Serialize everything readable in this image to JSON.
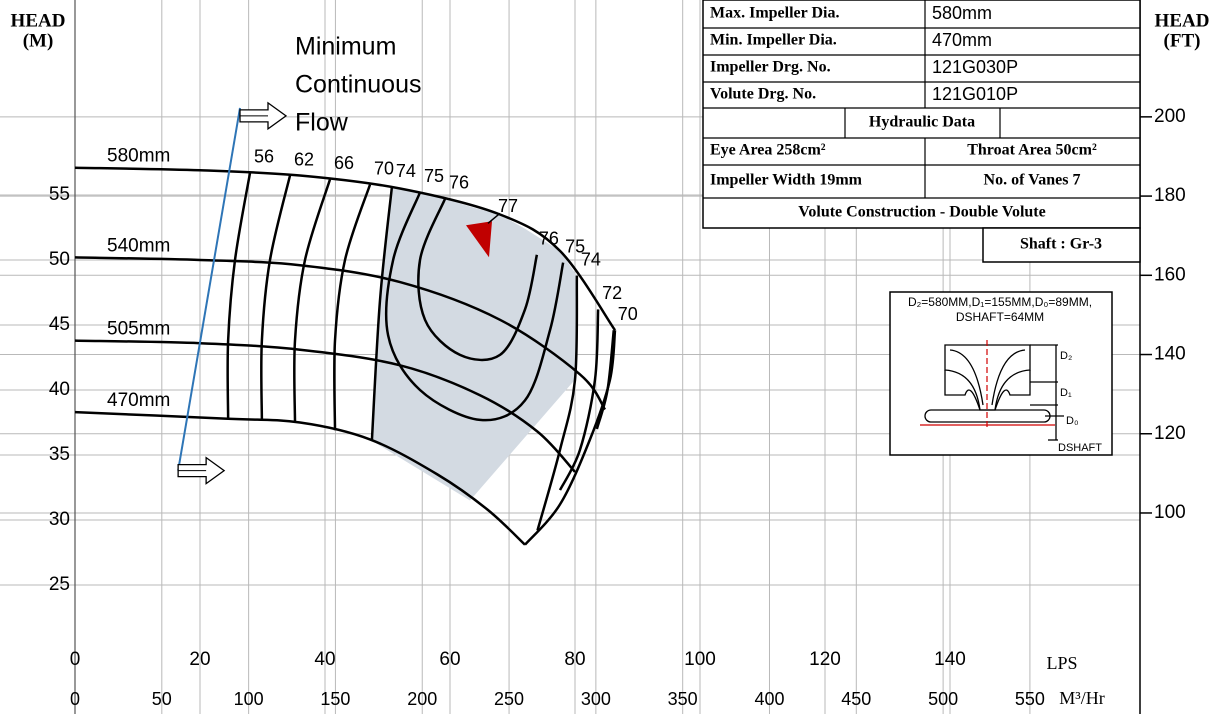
{
  "chart_data": {
    "type": "line",
    "y_label": [
      "HEAD",
      "(M)"
    ],
    "y2_label": [
      "HEAD",
      "(FT)"
    ],
    "x_label": "LPS",
    "x2_label": "M³/Hr",
    "xlim": [
      0,
      170.4
    ],
    "xticks": [
      0,
      20,
      40,
      60,
      80,
      100,
      120,
      140
    ],
    "x2lim": [
      0,
      613.4
    ],
    "x2ticks": [
      0,
      50,
      100,
      150,
      200,
      250,
      300,
      350,
      400,
      450,
      500,
      550
    ],
    "ylim": [
      15,
      70
    ],
    "yticks": [
      25,
      30,
      35,
      40,
      45,
      50,
      55
    ],
    "y2lim": [
      49.0,
      229.5
    ],
    "y2ticks": [
      100,
      120,
      140,
      160,
      180,
      200
    ],
    "grid": true,
    "series": [
      {
        "name": "580mm",
        "color": "#000000",
        "x": [
          0,
          20,
          36,
          52,
          68,
          77.6,
          86.4
        ],
        "y": [
          57.1,
          56.9,
          56.5,
          55.5,
          53.5,
          50.7,
          44.6
        ]
      },
      {
        "name": "540mm",
        "color": "#000000",
        "x": [
          0,
          20,
          36,
          52,
          68,
          80.8,
          84.8
        ],
        "y": [
          50.2,
          50.0,
          49.6,
          48.3,
          45.4,
          41.2,
          38.5
        ]
      },
      {
        "name": "505mm",
        "color": "#000000",
        "x": [
          0,
          20,
          36,
          52,
          64.8,
          74,
          80
        ],
        "y": [
          43.8,
          43.6,
          43.1,
          41.9,
          39.6,
          36.8,
          33.7
        ]
      },
      {
        "name": "470mm",
        "color": "#000000",
        "x": [
          0,
          24,
          36,
          47.2,
          58,
          66,
          72
        ],
        "y": [
          38.3,
          37.8,
          37.5,
          36.2,
          33.5,
          30.8,
          28.1
        ]
      }
    ],
    "contours": [
      {
        "name": "56",
        "x": [
          28,
          25.6,
          24.5,
          24.5
        ],
        "y": [
          56.7,
          50.0,
          43.8,
          37.8
        ]
      },
      {
        "name": "62",
        "x": [
          34.4,
          31.2,
          29.9,
          29.9
        ],
        "y": [
          56.5,
          50.0,
          43.8,
          37.7
        ]
      },
      {
        "name": "66",
        "x": [
          40.8,
          36.8,
          35.2,
          35.2
        ],
        "y": [
          56.2,
          50.0,
          43.8,
          37.5
        ]
      },
      {
        "name": "70",
        "x": [
          47.2,
          43.2,
          41.6,
          41.6
        ],
        "y": [
          55.8,
          50.0,
          43.8,
          36.9
        ]
      },
      {
        "name": "74",
        "x": [
          50.7,
          48.8,
          47.5
        ],
        "y": [
          55.6,
          46.9,
          36.1
        ]
      },
      {
        "name": "75",
        "x": [
          55.2,
          50.9,
          50.1,
          55.2,
          64.8,
          72,
          76,
          78.1
        ],
        "y": [
          55.2,
          50.0,
          44.2,
          40.0,
          37.7,
          39.2,
          44.6,
          49.8
        ]
      },
      {
        "name": "76",
        "x": [
          59.2,
          55.2,
          56,
          61.6,
          68,
          72,
          73.9
        ],
        "y": [
          54.7,
          50.0,
          45.4,
          42.7,
          42.7,
          46.2,
          50.4
        ]
      },
      {
        "name": "74",
        "x": [
          80.3,
          80,
          77.6,
          74
        ],
        "y": [
          48.8,
          40.8,
          35.4,
          29.2
        ]
      },
      {
        "name": "72",
        "x": [
          83.7,
          83.2,
          80.8,
          77.6
        ],
        "y": [
          46.2,
          40.8,
          35.4,
          32.3
        ]
      },
      {
        "name": "70",
        "x": [
          86.2,
          85.2,
          83.5
        ],
        "y": [
          44.6,
          40.0,
          37.0
        ]
      }
    ],
    "envelope": {
      "x": [
        72,
        77.6,
        82.4,
        85.6,
        86.4
      ],
      "y": [
        28.1,
        31.2,
        36.2,
        40.8,
        44.6
      ]
    },
    "shaded_region": {
      "color": "#d3dae2",
      "x": [
        50.7,
        55.2,
        59.2,
        64,
        68,
        72,
        77.6,
        80.3,
        80,
        63.2,
        47.5,
        48.8
      ],
      "y": [
        55.6,
        55.2,
        54.7,
        54.0,
        53.5,
        52.4,
        50.7,
        48.8,
        40.8,
        31.5,
        36.1,
        46.9
      ]
    },
    "best_efficiency": {
      "name": "77",
      "x": 64.8,
      "y": 51.9,
      "color": "#c00000"
    },
    "min_flow": {
      "lines": [
        "Minimum",
        "Continuous",
        "Flow"
      ],
      "color": "#2e75b6",
      "x": [
        26.4,
        16.5
      ],
      "y": [
        61.7,
        33.8
      ]
    },
    "spec_table": {
      "rows": [
        [
          "Max. Impeller Dia.",
          "580mm"
        ],
        [
          "Min. Impeller Dia.",
          "470mm"
        ],
        [
          "Impeller Drg. No.",
          "121G030P"
        ],
        [
          "Volute Drg. No.",
          "121G010P"
        ],
        [
          "Hydraulic Data"
        ],
        [
          "Eye Area 258cm²",
          "Throat Area 50cm²"
        ],
        [
          "Impeller Width 19mm",
          "No. of Vanes 7"
        ],
        [
          "Volute Construction - Double Volute"
        ],
        [
          "Shaft : Gr-3"
        ]
      ]
    },
    "impeller_diagram": {
      "title_lines": [
        "D₂=580MM,D₁=155MM,D₀=89MM,",
        "DSHAFT=64MM"
      ],
      "labels": [
        "D₂",
        "D₁",
        "D₀",
        "DSHAFT"
      ]
    }
  }
}
